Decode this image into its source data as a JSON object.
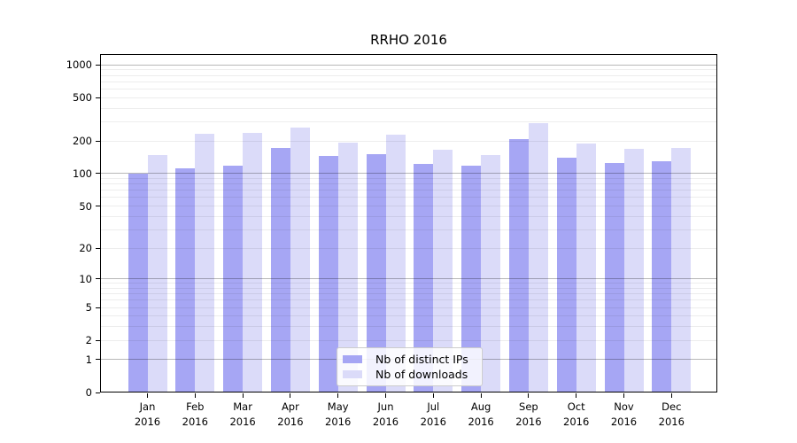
{
  "title": "RRHO 2016",
  "chart_data": {
    "type": "bar",
    "title": "RRHO 2016",
    "categories": [
      "Jan",
      "Feb",
      "Mar",
      "Apr",
      "May",
      "Jun",
      "Jul",
      "Aug",
      "Sep",
      "Oct",
      "Nov",
      "Dec"
    ],
    "x_year_line": "2016",
    "series": [
      {
        "name": "Nb of distinct IPs",
        "color": "#a6a6f4",
        "values": [
          99,
          112,
          119,
          172,
          145,
          150,
          123,
          118,
          207,
          140,
          125,
          130
        ]
      },
      {
        "name": "Nb of downloads",
        "color": "#dbdbf9",
        "values": [
          148,
          231,
          237,
          266,
          194,
          228,
          167,
          149,
          293,
          190,
          168,
          173
        ]
      }
    ],
    "y_ticks": [
      0,
      1,
      2,
      5,
      10,
      20,
      50,
      100,
      200,
      500,
      1000
    ],
    "y_scale": "log10(value+1)",
    "ylim": [
      0,
      1000
    ],
    "xlabel": "",
    "ylabel": "",
    "grid": "horizontal major+minor, drawn over bars",
    "legend_position": "lower center inside plot"
  }
}
